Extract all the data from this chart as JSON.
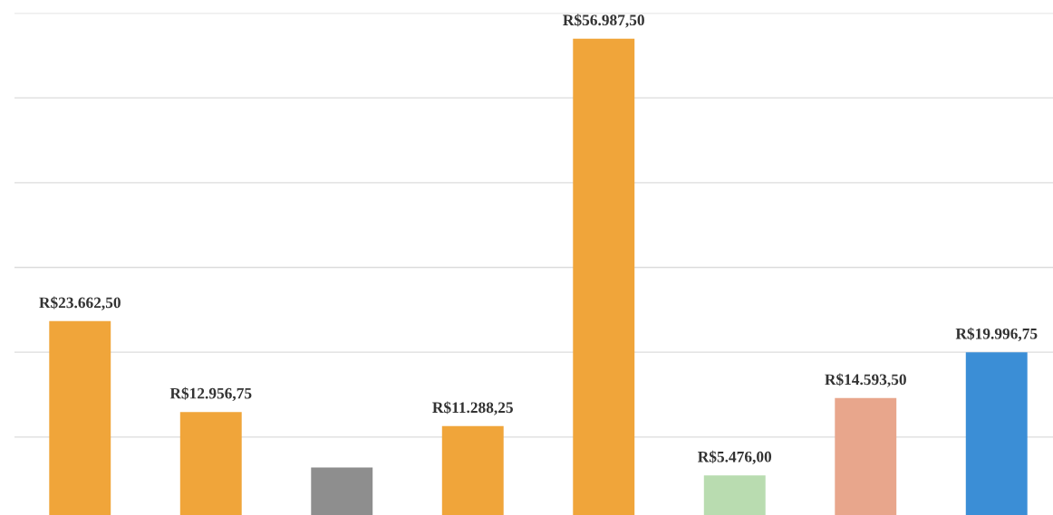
{
  "chart_data": {
    "type": "bar",
    "categories": [
      null,
      null,
      null,
      null,
      null,
      null,
      null,
      null
    ],
    "values": [
      23662.5,
      12956.75,
      6400,
      11288.25,
      56987.5,
      5476.0,
      14593.5,
      19996.75
    ],
    "colors": [
      "#f0a53a",
      "#f0a53a",
      "#8e8e8e",
      "#f0a53a",
      "#f0a53a",
      "#b9dcb0",
      "#e8a68c",
      "#3b8ed6"
    ],
    "value_labels": [
      "R$23.662,50",
      "R$12.956,75",
      null,
      "R$11.288,25",
      "R$56.987,50",
      "R$5.476,00",
      "R$14.593,50",
      "R$19.996,75"
    ],
    "ylim": [
      0,
      60000
    ],
    "yticks": [
      {
        "value": 10000,
        "label": null
      },
      {
        "value": 20000,
        "label": null
      },
      {
        "value": 30000,
        "label": null
      },
      {
        "value": 40000,
        "label": null
      },
      {
        "value": 50000,
        "label": null
      },
      {
        "value": 60000,
        "label": null
      }
    ],
    "grid": "y"
  }
}
